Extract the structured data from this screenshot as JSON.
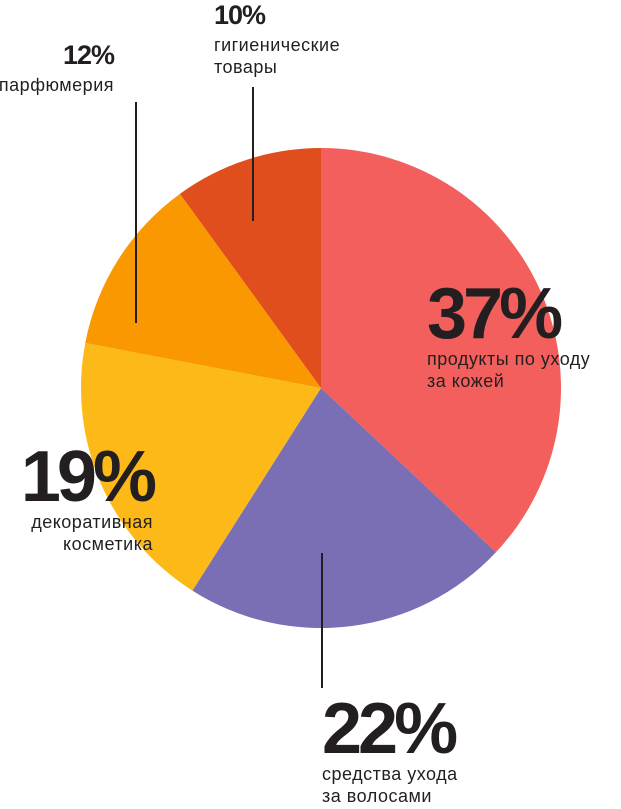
{
  "chart_data": {
    "type": "pie",
    "start": "top",
    "direction": "clockwise",
    "slices": [
      {
        "label": "продукты по уходу за кожей",
        "lines": [
          "продукты по уходу",
          "за кожей"
        ],
        "value": 37,
        "value_label": "37%",
        "color": "#F25F5C"
      },
      {
        "label": "средства ухода за волосами",
        "lines": [
          "средства ухода",
          "за волосами"
        ],
        "value": 22,
        "value_label": "22%",
        "color": "#7A6EB4"
      },
      {
        "label": "декоративная косметика",
        "lines": [
          "декоративная",
          "косметика"
        ],
        "value": 19,
        "value_label": "19%",
        "color": "#FDB917"
      },
      {
        "label": "парфюмерия",
        "lines": [
          "парфюмерия"
        ],
        "value": 12,
        "value_label": "12%",
        "color": "#F99800"
      },
      {
        "label": "гигиенические товары",
        "lines": [
          "гигиенические",
          "товары"
        ],
        "value": 10,
        "value_label": "10%",
        "color": "#DF4E1C"
      }
    ]
  }
}
